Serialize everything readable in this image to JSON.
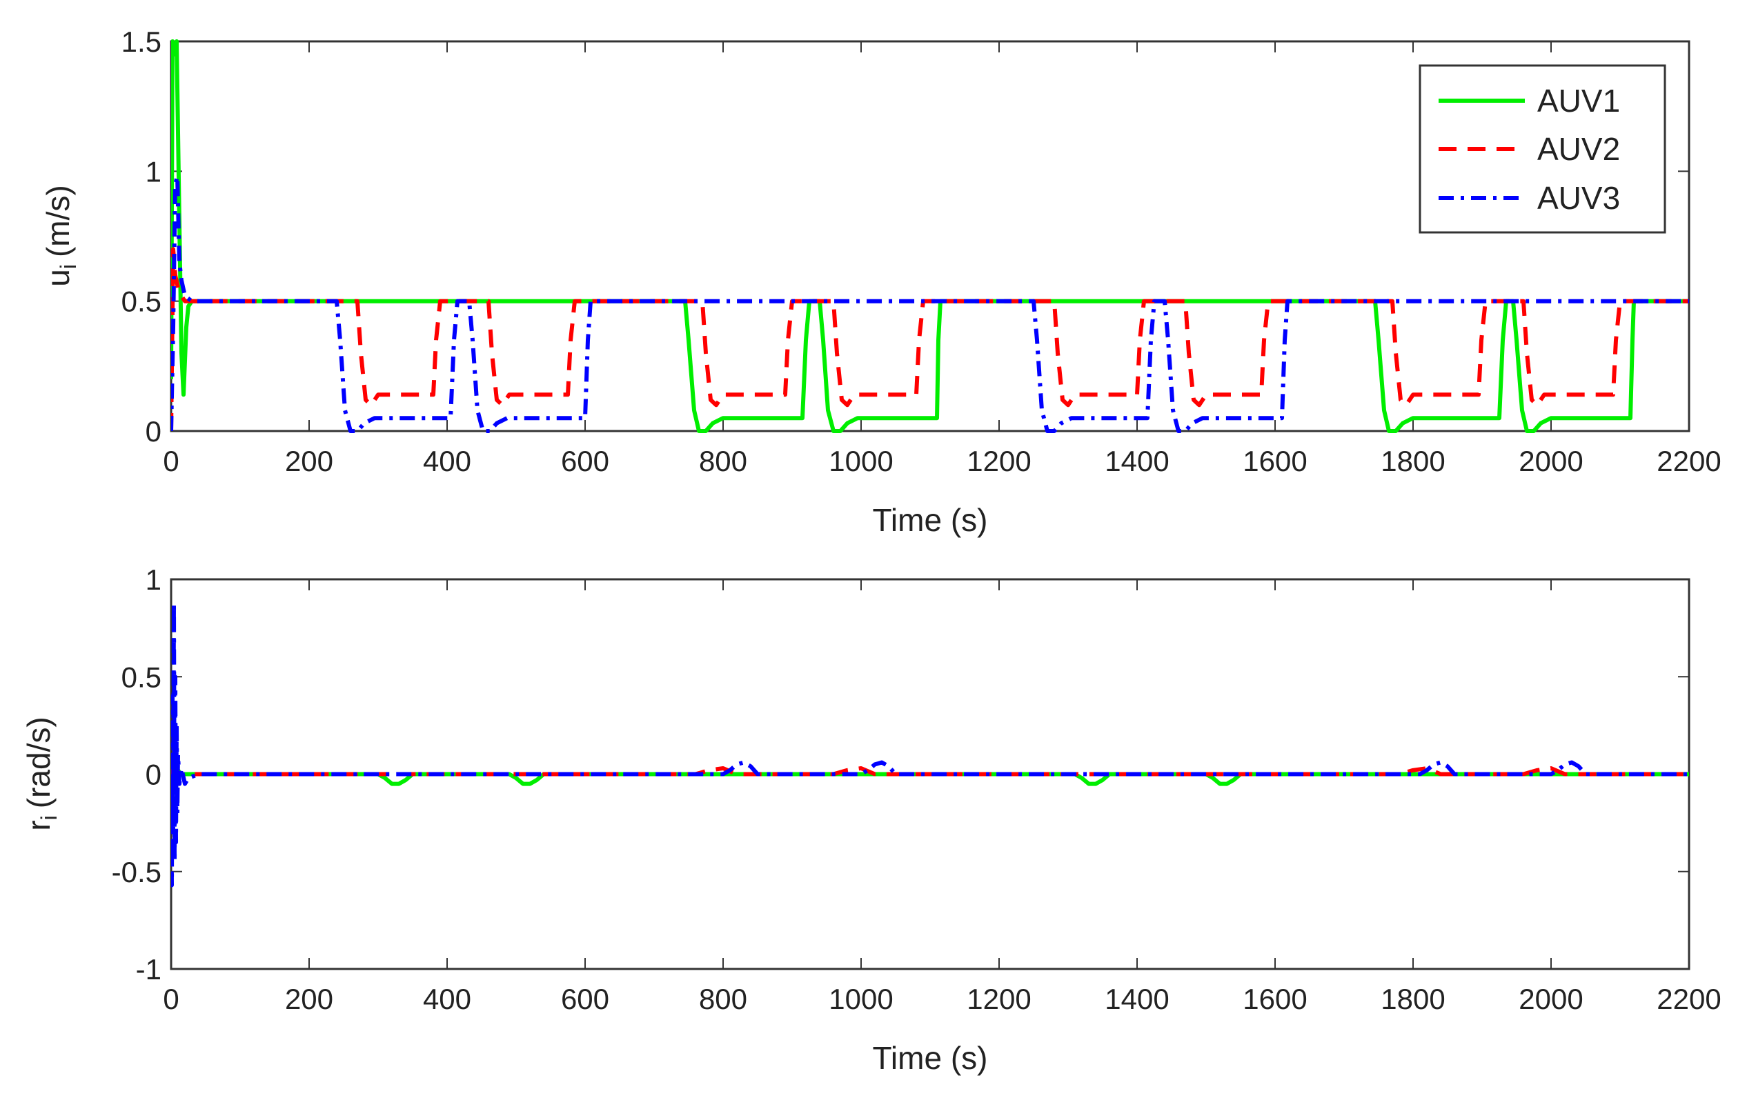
{
  "chart_data": [
    {
      "type": "line",
      "xlabel": "Time (s)",
      "ylabel": "u",
      "ylabel_subscript": "i",
      "ylabel_unit": "(m/s)",
      "xlim": [
        0,
        2200
      ],
      "ylim": [
        0,
        1.5
      ],
      "xticks": [
        "0",
        "200",
        "400",
        "600",
        "800",
        "1000",
        "1200",
        "1400",
        "1600",
        "1800",
        "2000",
        "2200"
      ],
      "yticks": [
        "0",
        "0.5",
        "1",
        "1.5"
      ],
      "legend": {
        "position": "top-right",
        "entries": [
          "AUV1",
          "AUV2",
          "AUV3"
        ]
      },
      "series": [
        {
          "name": "AUV1",
          "color": "#00ee00",
          "style": "solid",
          "x": [
            0,
            2,
            5,
            8,
            12,
            15,
            18,
            22,
            25,
            30,
            40,
            60,
            745,
            750,
            758,
            765,
            775,
            785,
            800,
            915,
            920,
            925,
            940,
            945,
            952,
            960,
            970,
            980,
            995,
            1110,
            1112,
            1115,
            1745,
            1750,
            1758,
            1765,
            1775,
            1785,
            1800,
            1925,
            1930,
            1935,
            1945,
            1950,
            1958,
            1965,
            1975,
            1985,
            2000,
            2115,
            2118,
            2120,
            2200
          ],
          "values": [
            0.2,
            1.5,
            1.45,
            1.5,
            0.8,
            0.3,
            0.14,
            0.4,
            0.48,
            0.5,
            0.5,
            0.5,
            0.5,
            0.35,
            0.08,
            0.0,
            0.0,
            0.03,
            0.05,
            0.05,
            0.35,
            0.5,
            0.5,
            0.35,
            0.08,
            0.0,
            0.0,
            0.03,
            0.05,
            0.05,
            0.35,
            0.5,
            0.5,
            0.35,
            0.08,
            0.0,
            0.0,
            0.03,
            0.05,
            0.05,
            0.35,
            0.5,
            0.5,
            0.35,
            0.08,
            0.0,
            0.0,
            0.03,
            0.05,
            0.05,
            0.35,
            0.5,
            0.5
          ]
        },
        {
          "name": "AUV2",
          "color": "#ff0000",
          "style": "dashed",
          "x": [
            0,
            3,
            6,
            10,
            15,
            20,
            30,
            40,
            270,
            275,
            282,
            290,
            300,
            380,
            384,
            390,
            460,
            465,
            472,
            480,
            490,
            575,
            579,
            585,
            770,
            775,
            782,
            790,
            800,
            890,
            894,
            900,
            960,
            965,
            972,
            980,
            990,
            1080,
            1084,
            1090,
            1280,
            1285,
            1292,
            1300,
            1310,
            1400,
            1404,
            1410,
            1470,
            1475,
            1482,
            1490,
            1500,
            1580,
            1584,
            1590,
            1770,
            1775,
            1782,
            1790,
            1800,
            1895,
            1899,
            1905,
            1960,
            1965,
            1972,
            1980,
            1990,
            2090,
            2094,
            2100,
            2200
          ],
          "values": [
            0.0,
            0.7,
            0.6,
            0.55,
            0.52,
            0.5,
            0.5,
            0.5,
            0.5,
            0.3,
            0.12,
            0.1,
            0.14,
            0.14,
            0.35,
            0.5,
            0.5,
            0.3,
            0.12,
            0.1,
            0.14,
            0.14,
            0.35,
            0.5,
            0.5,
            0.3,
            0.12,
            0.1,
            0.14,
            0.14,
            0.35,
            0.5,
            0.5,
            0.3,
            0.12,
            0.1,
            0.14,
            0.14,
            0.35,
            0.5,
            0.5,
            0.3,
            0.12,
            0.1,
            0.14,
            0.14,
            0.35,
            0.5,
            0.5,
            0.3,
            0.12,
            0.1,
            0.14,
            0.14,
            0.35,
            0.5,
            0.5,
            0.3,
            0.12,
            0.1,
            0.14,
            0.14,
            0.35,
            0.5,
            0.5,
            0.3,
            0.12,
            0.1,
            0.14,
            0.14,
            0.35,
            0.5,
            0.5
          ]
        },
        {
          "name": "AUV3",
          "color": "#0000ff",
          "style": "dashdot",
          "x": [
            0,
            3,
            6,
            9,
            12,
            15,
            20,
            30,
            40,
            240,
            245,
            252,
            260,
            270,
            280,
            295,
            405,
            410,
            415,
            432,
            437,
            444,
            452,
            462,
            472,
            487,
            600,
            604,
            608,
            1250,
            1255,
            1262,
            1270,
            1280,
            1290,
            1305,
            1415,
            1420,
            1425,
            1440,
            1445,
            1452,
            1460,
            1470,
            1480,
            1495,
            1610,
            1614,
            1618,
            2200
          ],
          "values": [
            0.0,
            0.4,
            0.95,
            0.98,
            0.65,
            0.58,
            0.52,
            0.5,
            0.5,
            0.5,
            0.35,
            0.08,
            0.0,
            0.0,
            0.03,
            0.05,
            0.05,
            0.35,
            0.5,
            0.5,
            0.35,
            0.08,
            0.0,
            0.0,
            0.03,
            0.05,
            0.05,
            0.35,
            0.5,
            0.5,
            0.35,
            0.08,
            0.0,
            0.0,
            0.03,
            0.05,
            0.05,
            0.35,
            0.5,
            0.5,
            0.35,
            0.08,
            0.0,
            0.0,
            0.03,
            0.05,
            0.05,
            0.35,
            0.5,
            0.5
          ]
        }
      ]
    },
    {
      "type": "line",
      "xlabel": "Time (s)",
      "ylabel": "r",
      "ylabel_subscript": "i",
      "ylabel_unit": "(rad/s)",
      "xlim": [
        0,
        2200
      ],
      "ylim": [
        -1,
        1
      ],
      "xticks": [
        "0",
        "200",
        "400",
        "600",
        "800",
        "1000",
        "1200",
        "1400",
        "1600",
        "1800",
        "2000",
        "2200"
      ],
      "yticks": [
        "-1",
        "-0.5",
        "0",
        "0.5",
        "1"
      ],
      "series": [
        {
          "name": "AUV1",
          "color": "#00ee00",
          "style": "solid",
          "x": [
            0,
            2,
            4,
            6,
            8,
            10,
            14,
            20,
            300,
            310,
            320,
            330,
            340,
            350,
            490,
            500,
            510,
            520,
            530,
            540,
            1310,
            1320,
            1330,
            1340,
            1350,
            1360,
            1500,
            1510,
            1520,
            1530,
            1540,
            1550,
            2200
          ],
          "values": [
            0.0,
            0.08,
            -0.05,
            0.06,
            -0.03,
            0.02,
            0.0,
            0.0,
            0.0,
            -0.02,
            -0.05,
            -0.05,
            -0.03,
            0.0,
            0.0,
            -0.02,
            -0.05,
            -0.05,
            -0.03,
            0.0,
            0.0,
            -0.02,
            -0.05,
            -0.05,
            -0.03,
            0.0,
            0.0,
            -0.02,
            -0.05,
            -0.05,
            -0.03,
            0.0,
            0.0
          ]
        },
        {
          "name": "AUV2",
          "color": "#ff0000",
          "style": "dashed",
          "x": [
            0,
            2,
            4,
            6,
            8,
            12,
            20,
            760,
            780,
            800,
            820,
            960,
            980,
            1000,
            1020,
            1780,
            1800,
            1820,
            1840,
            1960,
            1980,
            2000,
            2020,
            2200
          ],
          "values": [
            0.0,
            0.06,
            -0.06,
            0.04,
            -0.02,
            0.0,
            0.0,
            0.0,
            0.02,
            0.03,
            0.0,
            0.0,
            0.02,
            0.03,
            0.0,
            0.0,
            0.02,
            0.03,
            0.0,
            0.0,
            0.02,
            0.03,
            0.0,
            0.0
          ]
        },
        {
          "name": "AUV3",
          "color": "#0000ff",
          "style": "dashdot",
          "x": [
            0,
            1,
            2,
            3,
            4,
            5,
            6,
            7,
            8,
            9,
            10,
            12,
            15,
            20,
            25,
            40,
            800,
            810,
            820,
            830,
            840,
            850,
            1000,
            1010,
            1020,
            1030,
            1040,
            1050,
            1810,
            1820,
            1830,
            1840,
            1850,
            1860,
            2000,
            2010,
            2020,
            2030,
            2040,
            2050,
            2200
          ],
          "values": [
            0.0,
            -0.57,
            0.4,
            -0.3,
            0.88,
            -0.45,
            0.5,
            -0.35,
            0.25,
            -0.2,
            0.1,
            -0.05,
            0.03,
            -0.05,
            -0.02,
            0.0,
            0.0,
            0.02,
            0.05,
            0.06,
            0.04,
            0.0,
            0.0,
            0.02,
            0.05,
            0.06,
            0.04,
            0.0,
            0.0,
            0.02,
            0.05,
            0.06,
            0.04,
            0.0,
            0.0,
            0.02,
            0.05,
            0.06,
            0.04,
            0.0,
            0.0
          ]
        }
      ]
    }
  ]
}
